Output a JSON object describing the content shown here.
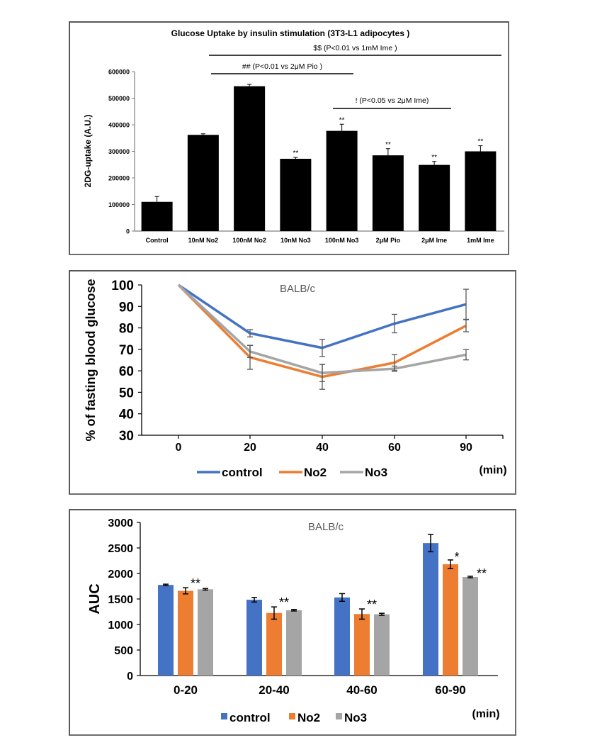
{
  "chart_data": [
    {
      "type": "bar",
      "title": "Glucose Uptake by insulin stimulation (3T3-L1 adipocytes )",
      "xlabel": "",
      "ylabel": "2DG-uptake (A.U.)",
      "ylim": [
        0,
        600000
      ],
      "yticks": [
        "0",
        "100000",
        "200000",
        "300000",
        "400000",
        "500000",
        "600000"
      ],
      "ytick_values": [
        0,
        100000,
        200000,
        300000,
        400000,
        500000,
        600000
      ],
      "categories": [
        "Control",
        "10nM No2",
        "100nM No2",
        "10nM No3",
        "100nM No3",
        "2μM Pio",
        "2μM Ime",
        "1mM Ime"
      ],
      "values": [
        110000,
        362000,
        545000,
        272000,
        377000,
        285000,
        249000,
        300000
      ],
      "errors": [
        20000,
        4000,
        7000,
        5000,
        25000,
        25000,
        13000,
        21000
      ],
      "significance": [
        "",
        "",
        "",
        "**",
        "**",
        "**",
        "**",
        "**"
      ],
      "bar_color": "#000000",
      "grid": false,
      "comparison_brackets": [
        {
          "label": "$$ (P<0.01 vs 1mM Ime )",
          "from": "100nM No2",
          "to": "1mM Ime"
        },
        {
          "label": "## (P<0.01 vs 2μM Pio )",
          "from": "100nM No2",
          "to": "2μM Pio"
        },
        {
          "label": "! (P<0.05 vs 2μM Ime)",
          "from": "100nM No3",
          "to": "2μM Ime"
        }
      ]
    },
    {
      "type": "line",
      "title": "BALB/c",
      "xlabel": "(min)",
      "ylabel": "% of fasting blood glucose",
      "ylim": [
        30,
        100
      ],
      "yticks": [
        "30",
        "40",
        "50",
        "60",
        "70",
        "80",
        "90",
        "100"
      ],
      "ytick_values": [
        30,
        40,
        50,
        60,
        70,
        80,
        90,
        100
      ],
      "x": [
        "0",
        "20",
        "40",
        "60",
        "90"
      ],
      "legend_position": "bottom",
      "grid": false,
      "series": [
        {
          "name": "control",
          "color": "#4472c4",
          "values": [
            100,
            77.5,
            70.7,
            82,
            91
          ],
          "errors": [
            0,
            1.7,
            4.0,
            4.3,
            7.0
          ]
        },
        {
          "name": "No2",
          "color": "#ed7d31",
          "values": [
            100,
            66.3,
            57.2,
            63.8,
            81
          ],
          "errors": [
            0,
            5.6,
            5.8,
            3.7,
            2.8
          ]
        },
        {
          "name": "No3",
          "color": "#a5a5a5",
          "values": [
            100,
            69,
            59,
            61,
            67.5
          ],
          "errors": [
            0,
            2.8,
            4.0,
            1.2,
            2.4
          ]
        }
      ]
    },
    {
      "type": "bar",
      "title": "BALB/c",
      "xlabel": "(min)",
      "ylabel": "AUC",
      "ylim": [
        0,
        3000
      ],
      "yticks": [
        "0",
        "500",
        "1000",
        "1500",
        "2000",
        "2500",
        "3000"
      ],
      "ytick_values": [
        0,
        500,
        1000,
        1500,
        2000,
        2500,
        3000
      ],
      "categories": [
        "0-20",
        "20-40",
        "40-60",
        "60-90"
      ],
      "legend_position": "bottom",
      "grid": false,
      "series": [
        {
          "name": "control",
          "color": "#4472c4",
          "values": [
            1775,
            1485,
            1530,
            2595
          ],
          "errors": [
            15,
            45,
            75,
            170
          ]
        },
        {
          "name": "No2",
          "color": "#ed7d31",
          "values": [
            1660,
            1225,
            1205,
            2180
          ],
          "errors": [
            60,
            120,
            100,
            85
          ]
        },
        {
          "name": "No3",
          "color": "#a5a5a5",
          "values": [
            1690,
            1280,
            1200,
            1930
          ],
          "errors": [
            15,
            15,
            20,
            15
          ]
        }
      ],
      "significance": [
        {
          "category": "0-20",
          "label": "**",
          "series": "No2"
        },
        {
          "category": "20-40",
          "label": "**",
          "series": "No2"
        },
        {
          "category": "40-60",
          "label": "**",
          "series": "No2"
        },
        {
          "category": "60-90",
          "label": "*",
          "series": "No2"
        },
        {
          "category": "60-90",
          "label": "**",
          "series": "No3"
        }
      ]
    }
  ]
}
